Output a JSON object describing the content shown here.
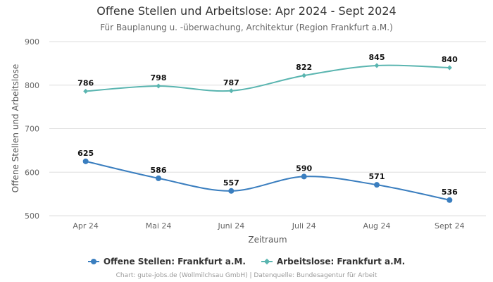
{
  "chart_data": {
    "type": "line",
    "title": "Offene Stellen und Arbeitslose: Apr 2024 - Sept 2024",
    "subtitle": "Für Bauplanung u. -überwachung, Architektur (Region Frankfurt a.M.)",
    "xlabel": "Zeitraum",
    "ylabel": "Offene Stellen und Arbeitslose",
    "categories": [
      "Apr 24",
      "Mai 24",
      "Juni 24",
      "Juli 24",
      "Aug 24",
      "Sept 24"
    ],
    "yticks": [
      500,
      600,
      700,
      800,
      900
    ],
    "ylim": [
      500,
      900
    ],
    "grid": true,
    "legend_position": "bottom",
    "series": [
      {
        "name": "Offene Stellen: Frankfurt a.M.",
        "values": [
          625,
          586,
          557,
          590,
          571,
          536
        ],
        "color": "#3a7ebf",
        "marker": "circle"
      },
      {
        "name": "Arbeitslose: Frankfurt a.M.",
        "values": [
          786,
          798,
          787,
          822,
          845,
          840
        ],
        "color": "#5ab5b0",
        "marker": "diamond"
      }
    ]
  },
  "footer": {
    "credit": "Chart: gute-jobs.de (Wollmilchsau GmbH) | Datenquelle: Bundesagentur für Arbeit"
  }
}
